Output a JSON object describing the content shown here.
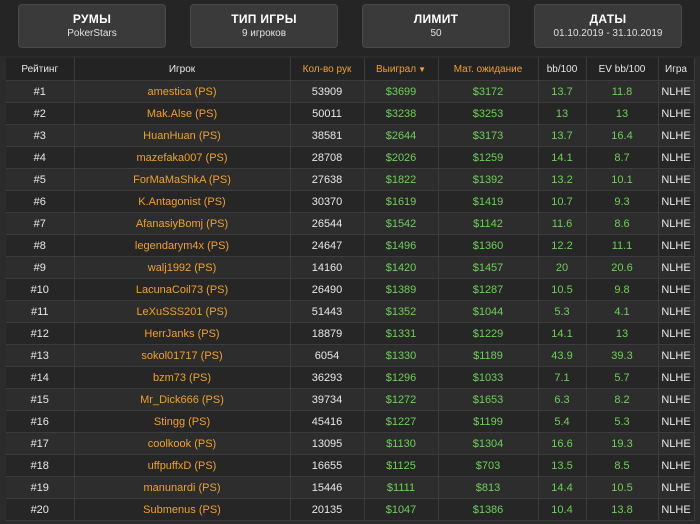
{
  "filters": {
    "rooms": {
      "title": "РУМЫ",
      "value": "PokerStars"
    },
    "game_type": {
      "title": "ТИП ИГРЫ",
      "value": "9 игроков"
    },
    "limit": {
      "title": "ЛИМИТ",
      "value": "50"
    },
    "dates": {
      "title": "ДАТЫ",
      "value": "01.10.2019 - 31.10.2019"
    }
  },
  "table": {
    "headers": {
      "rank": "Рейтинг",
      "player": "Игрок",
      "hands": "Кол-во рук",
      "won": "Выиграл",
      "won_caret": "▼",
      "ev": "Мат. ожидание",
      "bb100": "bb/100",
      "evbb100": "EV bb/100",
      "game": "Игра"
    },
    "rows": [
      {
        "rank": "#1",
        "player": "amestica (PS)",
        "hands": "53909",
        "won": "$3699",
        "ev": "$3172",
        "bb": "13.7",
        "evbb": "11.8",
        "game": "NLHE"
      },
      {
        "rank": "#2",
        "player": "Mak.Alse (PS)",
        "hands": "50011",
        "won": "$3238",
        "ev": "$3253",
        "bb": "13",
        "evbb": "13",
        "game": "NLHE"
      },
      {
        "rank": "#3",
        "player": "HuanHuan (PS)",
        "hands": "38581",
        "won": "$2644",
        "ev": "$3173",
        "bb": "13.7",
        "evbb": "16.4",
        "game": "NLHE"
      },
      {
        "rank": "#4",
        "player": "mazefaka007 (PS)",
        "hands": "28708",
        "won": "$2026",
        "ev": "$1259",
        "bb": "14.1",
        "evbb": "8.7",
        "game": "NLHE"
      },
      {
        "rank": "#5",
        "player": "ForMaMaShkA (PS)",
        "hands": "27638",
        "won": "$1822",
        "ev": "$1392",
        "bb": "13.2",
        "evbb": "10.1",
        "game": "NLHE"
      },
      {
        "rank": "#6",
        "player": "K.Antagonist (PS)",
        "hands": "30370",
        "won": "$1619",
        "ev": "$1419",
        "bb": "10.7",
        "evbb": "9.3",
        "game": "NLHE"
      },
      {
        "rank": "#7",
        "player": "AfanasiyBomj (PS)",
        "hands": "26544",
        "won": "$1542",
        "ev": "$1142",
        "bb": "11.6",
        "evbb": "8.6",
        "game": "NLHE"
      },
      {
        "rank": "#8",
        "player": "legendarym4x (PS)",
        "hands": "24647",
        "won": "$1496",
        "ev": "$1360",
        "bb": "12.2",
        "evbb": "11.1",
        "game": "NLHE"
      },
      {
        "rank": "#9",
        "player": "walj1992 (PS)",
        "hands": "14160",
        "won": "$1420",
        "ev": "$1457",
        "bb": "20",
        "evbb": "20.6",
        "game": "NLHE"
      },
      {
        "rank": "#10",
        "player": "LacunaCoil73 (PS)",
        "hands": "26490",
        "won": "$1389",
        "ev": "$1287",
        "bb": "10.5",
        "evbb": "9.8",
        "game": "NLHE"
      },
      {
        "rank": "#11",
        "player": "LeXuSSS201 (PS)",
        "hands": "51443",
        "won": "$1352",
        "ev": "$1044",
        "bb": "5.3",
        "evbb": "4.1",
        "game": "NLHE"
      },
      {
        "rank": "#12",
        "player": "HerrJanks (PS)",
        "hands": "18879",
        "won": "$1331",
        "ev": "$1229",
        "bb": "14.1",
        "evbb": "13",
        "game": "NLHE"
      },
      {
        "rank": "#13",
        "player": "sokol01717 (PS)",
        "hands": "6054",
        "won": "$1330",
        "ev": "$1189",
        "bb": "43.9",
        "evbb": "39.3",
        "game": "NLHE"
      },
      {
        "rank": "#14",
        "player": "bzm73 (PS)",
        "hands": "36293",
        "won": "$1296",
        "ev": "$1033",
        "bb": "7.1",
        "evbb": "5.7",
        "game": "NLHE"
      },
      {
        "rank": "#15",
        "player": "Mr_Dick666 (PS)",
        "hands": "39734",
        "won": "$1272",
        "ev": "$1653",
        "bb": "6.3",
        "evbb": "8.2",
        "game": "NLHE"
      },
      {
        "rank": "#16",
        "player": "Stingg (PS)",
        "hands": "45416",
        "won": "$1227",
        "ev": "$1199",
        "bb": "5.4",
        "evbb": "5.3",
        "game": "NLHE"
      },
      {
        "rank": "#17",
        "player": "coolkook (PS)",
        "hands": "13095",
        "won": "$1130",
        "ev": "$1304",
        "bb": "16.6",
        "evbb": "19.3",
        "game": "NLHE"
      },
      {
        "rank": "#18",
        "player": "uffpuffxD (PS)",
        "hands": "16655",
        "won": "$1125",
        "ev": "$703",
        "bb": "13.5",
        "evbb": "8.5",
        "game": "NLHE"
      },
      {
        "rank": "#19",
        "player": "manunardi (PS)",
        "hands": "15446",
        "won": "$1111",
        "ev": "$813",
        "bb": "14.4",
        "evbb": "10.5",
        "game": "NLHE"
      },
      {
        "rank": "#20",
        "player": "Submenus (PS)",
        "hands": "20135",
        "won": "$1047",
        "ev": "$1386",
        "bb": "10.4",
        "evbb": "13.8",
        "game": "NLHE"
      }
    ]
  },
  "colors": {
    "accent_orange": "#f0a030",
    "positive_green": "#6fcf5a",
    "background": "#2b2b2b"
  }
}
